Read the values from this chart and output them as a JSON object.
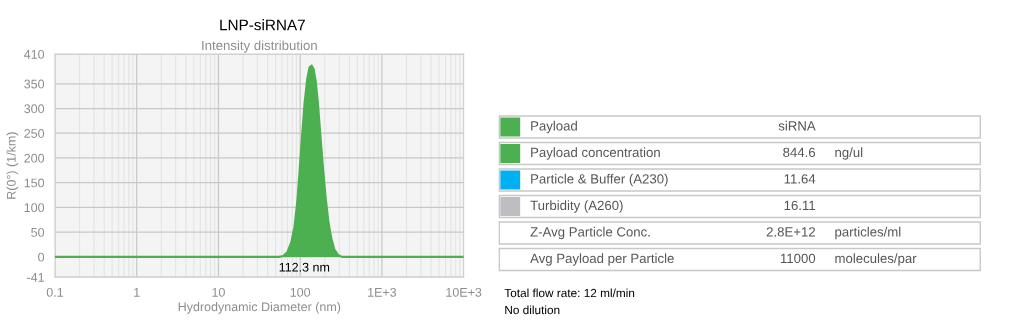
{
  "chart_data": [
    {
      "type": "area",
      "title": "LNP-siRNA7",
      "subtitle": "Intensity distribution",
      "xlabel": "Hydrodynamic Diameter (nm)",
      "ylabel": "R(0°) (1/km)",
      "log": "x",
      "x": [
        0.1,
        55,
        62,
        70,
        78,
        85,
        92,
        98,
        105,
        113,
        122,
        130,
        138,
        146,
        155,
        165,
        176,
        190,
        205,
        222,
        240,
        262,
        290,
        325,
        10000
      ],
      "series": [
        {
          "color": "#4caf50",
          "values": [
            0,
            0,
            2,
            10,
            30,
            60,
            110,
            170,
            240,
            310,
            360,
            383,
            387,
            380,
            355,
            310,
            250,
            180,
            120,
            70,
            38,
            15,
            4,
            0,
            0
          ]
        }
      ],
      "xlim": [
        0.1,
        10000
      ],
      "xticks": [
        0.1,
        1,
        10,
        100,
        {
          "value": 1000,
          "label": "1E+3"
        },
        {
          "value": 10000,
          "label": "10E+3"
        }
      ],
      "ylim": [
        -41,
        410
      ],
      "yticks": [
        -41,
        0,
        50,
        100,
        150,
        200,
        250,
        300,
        350,
        410
      ],
      "grid": true,
      "annotations": [
        {
          "text": "112.3 nm",
          "x": 112.3,
          "y": 0
        }
      ]
    },
    {
      "type": "other",
      "cell_labels": [
        [
          "Payload",
          "siRNA",
          null
        ],
        [
          "Payload concentration",
          "844.6",
          "ng/ul"
        ],
        [
          "Particle & Buffer (A230)",
          "11.64",
          null
        ],
        [
          "Turbidity (A260)",
          "16.11",
          null
        ],
        [
          "Z-Avg Particle Conc.",
          "2.8E+12",
          "particles/ml"
        ],
        [
          "Avg Payload per Particle",
          "11000",
          "molecules/par"
        ]
      ],
      "colors": [
        "#4caf50",
        "#4caf50",
        "#00b0f0",
        "#bdbdc2",
        null,
        null
      ],
      "annotations": [
        "Total flow rate: 12 ml/min",
        "No dilution"
      ]
    }
  ]
}
